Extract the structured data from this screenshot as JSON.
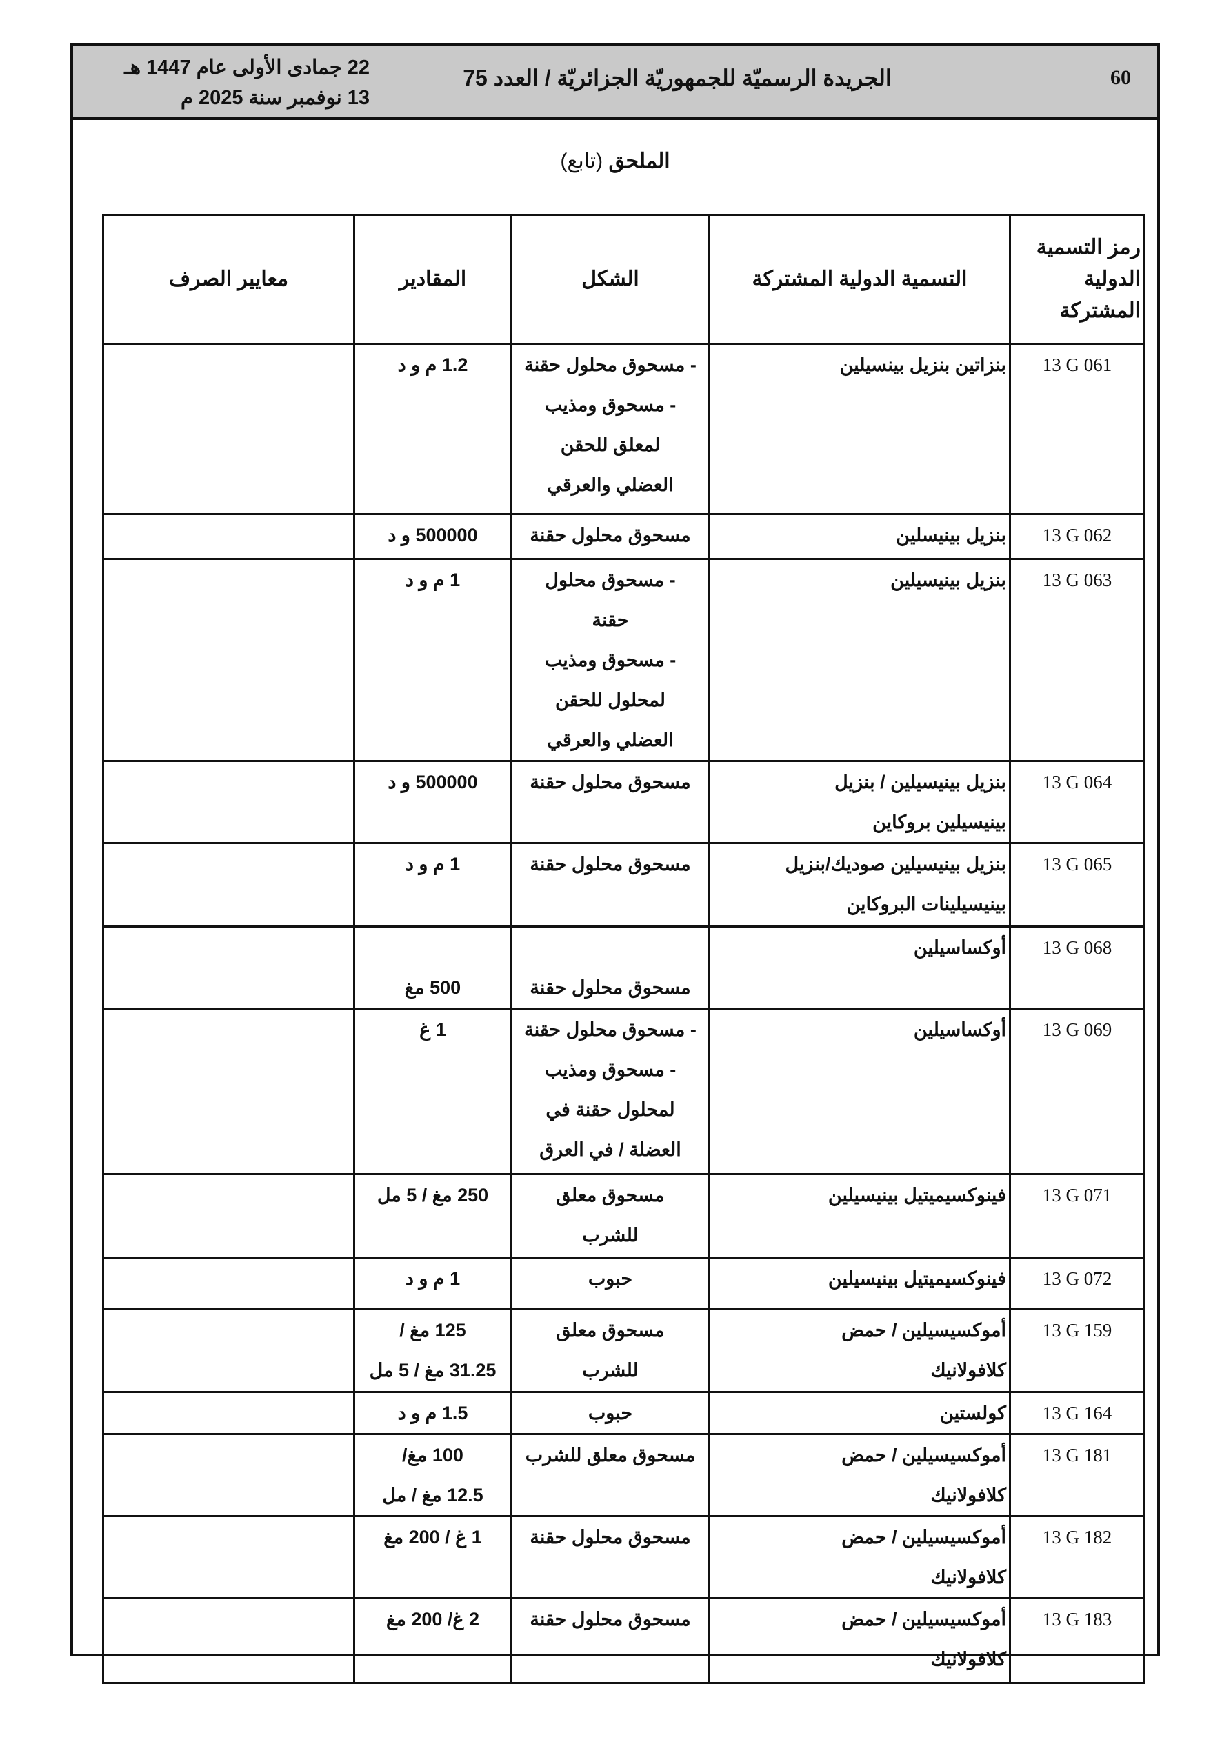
{
  "masthead": {
    "page_number": "60",
    "title": "الجريدة الرسميّة للجمهوريّة الجزائريّة / العدد 75",
    "date_hijri": "22 جمادى الأولى عام 1447 هـ",
    "date_gregorian": "13 نوفمبر سنة 2025 م"
  },
  "annex": {
    "title": "الملحق",
    "subtitle": "(تابع)"
  },
  "table": {
    "headers": {
      "code": "رمز التسمية الدولية المشتركة",
      "name": "التسمية الدولية المشتركة",
      "form": "الشكل",
      "dose": "المقادير",
      "criteria": "معايير الصرف"
    },
    "rows": [
      {
        "code": "13 G 061",
        "name": [
          "بنزاتين بنزيل بينسيلين"
        ],
        "form": [
          "- مسحوق محلول حقنة",
          "- مسحوق ومذيب",
          "لمعلق للحقن",
          "العضلي والعرقي"
        ],
        "dose": [
          "1.2 م و د"
        ],
        "criteria": []
      },
      {
        "code": "13 G 062",
        "name": [
          "بنزيل بينيسلين"
        ],
        "form": [
          "مسحوق محلول حقنة"
        ],
        "dose": [
          "500000 و د"
        ],
        "criteria": []
      },
      {
        "code": "13 G 063",
        "name": [
          "بنزيل بينيسيلين"
        ],
        "form": [
          "- مسحوق محلول",
          "حقنة",
          "- مسحوق ومذيب",
          "لمحلول للحقن",
          "العضلي والعرقي"
        ],
        "dose": [
          "1 م و د"
        ],
        "criteria": []
      },
      {
        "code": "13 G 064",
        "name": [
          "بنزيل بينيسيلين / بنزيل",
          "بينيسيلين بروكاين"
        ],
        "form": [
          "مسحوق محلول حقنة"
        ],
        "dose": [
          "500000 و د"
        ],
        "criteria": []
      },
      {
        "code": "13 G 065",
        "name": [
          "بنزيل بينيسيلين صوديك/بنزيل",
          "بينيسيلينات البروكاين"
        ],
        "form": [
          "مسحوق محلول حقنة"
        ],
        "dose": [
          "1 م و د"
        ],
        "criteria": []
      },
      {
        "code": "13 G 068",
        "name": [
          "أوكساسيلين"
        ],
        "form": [
          "",
          "مسحوق محلول حقنة"
        ],
        "dose": [
          "",
          "500 مغ"
        ],
        "criteria": []
      },
      {
        "code": "13 G 069",
        "name": [
          "أوكساسيلين"
        ],
        "form": [
          "- مسحوق محلول حقنة",
          "- مسحوق ومذيب",
          "لمحلول حقنة في",
          "العضلة / في العرق"
        ],
        "dose": [
          "1 غ"
        ],
        "criteria": []
      },
      {
        "code": "13 G 071",
        "name": [
          "فينوكسيميتيل بينيسيلين"
        ],
        "form": [
          "مسحوق معلق",
          "للشرب"
        ],
        "dose": [
          "250 مغ / 5 مل"
        ],
        "criteria": []
      },
      {
        "code": "13 G 072",
        "name": [
          "فينوكسيميتيل بينيسيلين"
        ],
        "form": [
          "حبوب"
        ],
        "dose": [
          "1 م و د"
        ],
        "criteria": []
      },
      {
        "code": "13 G 159",
        "name": [
          "أموكسيسيلين / حمض",
          "كلافولانيك"
        ],
        "form": [
          "مسحوق معلق",
          "للشرب"
        ],
        "dose": [
          "125 مغ /",
          "31.25 مغ / 5 مل"
        ],
        "criteria": []
      },
      {
        "code": "13 G 164",
        "name": [
          "كولستين"
        ],
        "form": [
          "حبوب"
        ],
        "dose": [
          "1.5 م و د"
        ],
        "criteria": []
      },
      {
        "code": "13 G 181",
        "name": [
          "أموكسيسيلين / حمض",
          "كلافولانيك"
        ],
        "form": [
          "مسحوق معلق للشرب"
        ],
        "dose": [
          "100 مغ/",
          "12.5 مغ / مل"
        ],
        "criteria": []
      },
      {
        "code": "13 G 182",
        "name": [
          "أموكسيسيلين / حمض",
          "كلافولانيك"
        ],
        "form": [
          "مسحوق محلول حقنة"
        ],
        "dose": [
          "1 غ / 200 مغ"
        ],
        "criteria": []
      },
      {
        "code": "13 G 183",
        "name": [
          "أموكسيسيلين / حمض",
          "كلافولانيك"
        ],
        "form": [
          "مسحوق محلول حقنة"
        ],
        "dose": [
          "2 غ/ 200 مغ"
        ],
        "criteria": []
      }
    ]
  }
}
